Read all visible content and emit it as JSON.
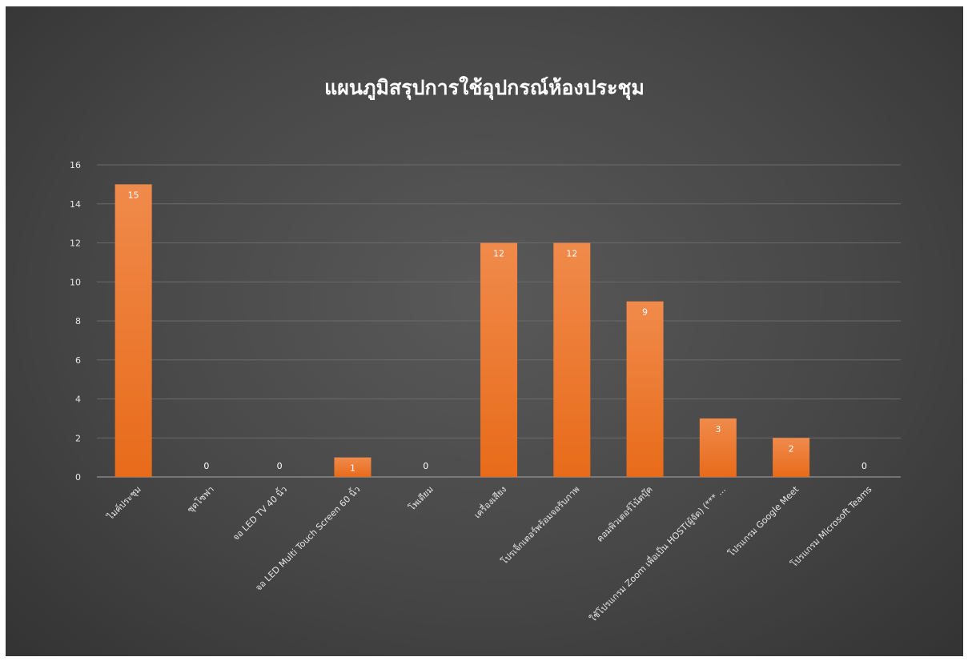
{
  "colors": {
    "bar_top": "#f08a4b",
    "bar_bottom": "#e86b1a",
    "background": "#4a4a4a"
  },
  "chart_data": {
    "type": "bar",
    "title": "แผนภูมิสรุปการใช้อุปกรณ์ห้องประชุม",
    "xlabel": "",
    "ylabel": "",
    "ylim": [
      0,
      16
    ],
    "y_ticks": [
      "0",
      "2",
      "4",
      "6",
      "8",
      "10",
      "12",
      "14",
      "16"
    ],
    "grid": true,
    "legend": "none",
    "categories": [
      "ไมค์ประชุม",
      "ชุดโซฟา",
      "จอ LED TV 40 นิ้ว",
      "จอ LED Multi Touch Screen 60 นิ้ว",
      "โพเดียม",
      "เครื่องเสียง",
      "โปรเจ็กเตอร์พร้อมจอรับภาพ",
      "คอมพิวเตอร์โน้ตบุ๊ค",
      "ใช้โปรแกรม Zoom เพื่อเป็น HOST(ผู้จัด) (*** ...",
      "โปรแกรม Google Meet",
      "โปรแกรม Microsoft Teams"
    ],
    "values": [
      15,
      0,
      0,
      1,
      0,
      12,
      12,
      9,
      3,
      2,
      0
    ],
    "data_labels": [
      "15",
      "0",
      "0",
      "1",
      "0",
      "12",
      "12",
      "9",
      "3",
      "2",
      "0"
    ]
  }
}
